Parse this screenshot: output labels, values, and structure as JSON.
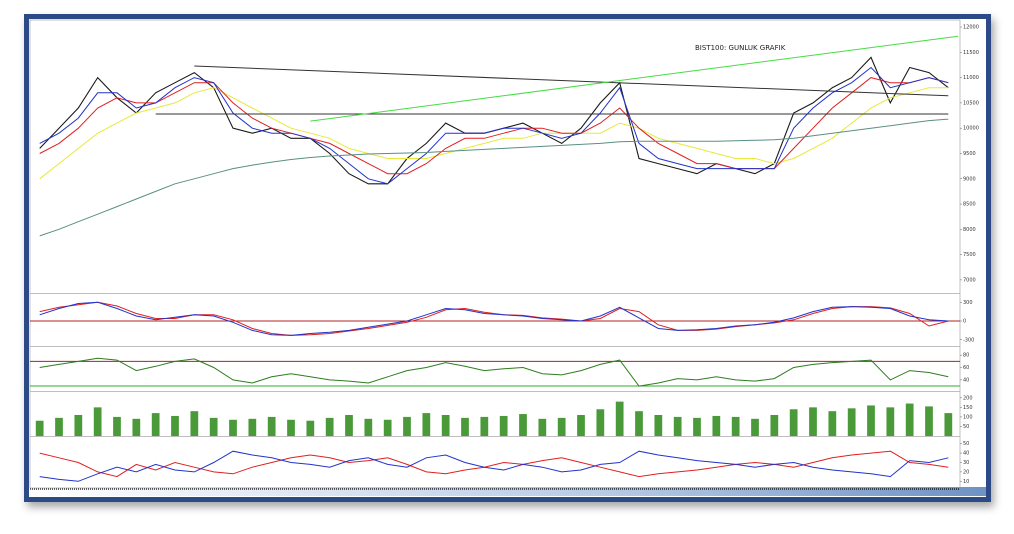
{
  "chart_data": [
    {
      "type": "line",
      "title": "BIST100: GUNLUK GRAFIK",
      "ylim": [
        6800,
        12100
      ],
      "yticks": [
        12000,
        11500,
        11000,
        10500,
        10000,
        9500,
        9000,
        8500,
        8000,
        7500,
        7000
      ],
      "series": [
        {
          "color": "#1a1a1a",
          "values": [
            9600,
            10000,
            10400,
            11000,
            10600,
            10300,
            10700,
            10900,
            11100,
            10800,
            10000,
            9900,
            10000,
            9800,
            9800,
            9500,
            9100,
            8900,
            8900,
            9400,
            9700,
            10100,
            9900,
            9900,
            10000,
            10100,
            9900,
            9700,
            10000,
            10500,
            10900,
            9400,
            9300,
            9200,
            9100,
            9300,
            9200,
            9100,
            9300,
            10300,
            10500,
            10800,
            11000,
            11400,
            10500,
            11200,
            11100,
            10800
          ]
        },
        {
          "color": "#e8e83a",
          "values": [
            9000,
            9300,
            9600,
            9900,
            10100,
            10300,
            10400,
            10500,
            10700,
            10800,
            10600,
            10400,
            10200,
            10000,
            9900,
            9800,
            9600,
            9500,
            9400,
            9400,
            9400,
            9500,
            9600,
            9700,
            9800,
            9800,
            9900,
            9900,
            9900,
            9900,
            10100,
            10000,
            9800,
            9700,
            9600,
            9500,
            9400,
            9400,
            9300,
            9400,
            9600,
            9800,
            10100,
            10400,
            10600,
            10700,
            10800,
            10800
          ]
        },
        {
          "color": "#e02020",
          "values": [
            9500,
            9700,
            10000,
            10400,
            10600,
            10500,
            10500,
            10700,
            10900,
            10900,
            10500,
            10200,
            10000,
            9900,
            9800,
            9700,
            9500,
            9300,
            9100,
            9100,
            9300,
            9600,
            9800,
            9800,
            9900,
            10000,
            10000,
            9900,
            9900,
            10100,
            10400,
            10000,
            9700,
            9500,
            9300,
            9300,
            9200,
            9200,
            9200,
            9600,
            10000,
            10400,
            10700,
            11000,
            10900,
            10900,
            11000,
            10900
          ]
        },
        {
          "color": "#2233cc",
          "values": [
            9700,
            9900,
            10200,
            10700,
            10700,
            10400,
            10500,
            10800,
            11000,
            10900,
            10300,
            10000,
            9900,
            9900,
            9800,
            9600,
            9300,
            9000,
            8900,
            9200,
            9500,
            9900,
            9900,
            9900,
            10000,
            10000,
            9900,
            9800,
            9900,
            10300,
            10800,
            9700,
            9400,
            9300,
            9200,
            9200,
            9200,
            9200,
            9200,
            10000,
            10400,
            10700,
            10900,
            11200,
            10800,
            10900,
            11000,
            10900
          ]
        },
        {
          "color": "#5a8f85",
          "values": [
            7870,
            8000,
            8150,
            8300,
            8450,
            8600,
            8750,
            8900,
            9000,
            9100,
            9200,
            9270,
            9330,
            9380,
            9420,
            9450,
            9470,
            9490,
            9500,
            9510,
            9520,
            9540,
            9560,
            9580,
            9600,
            9620,
            9640,
            9660,
            9680,
            9700,
            9730,
            9740,
            9740,
            9740,
            9740,
            9740,
            9750,
            9760,
            9770,
            9800,
            9850,
            9900,
            9950,
            10000,
            10050,
            10100,
            10150,
            10180
          ]
        }
      ],
      "trendlines": [
        {
          "color": "#333333",
          "x": [
            8,
            47
          ],
          "values": [
            11230,
            10640
          ]
        },
        {
          "color": "#333333",
          "x": [
            6,
            47
          ],
          "values": [
            10280,
            10280
          ]
        },
        {
          "color": "#44dd44",
          "x": [
            14,
            47.5
          ],
          "values": [
            10140,
            11820
          ]
        }
      ]
    },
    {
      "type": "line",
      "ylim": [
        -400,
        400
      ],
      "yticks": [
        300,
        0,
        -300
      ],
      "reference_lines": [
        {
          "value": 0,
          "color": "#b02020"
        }
      ],
      "series": [
        {
          "color": "#e02020",
          "values": [
            150,
            220,
            260,
            300,
            240,
            120,
            40,
            40,
            100,
            100,
            20,
            -120,
            -200,
            -230,
            -220,
            -200,
            -160,
            -120,
            -70,
            -20,
            60,
            180,
            200,
            140,
            100,
            90,
            50,
            30,
            0,
            40,
            200,
            150,
            -60,
            -150,
            -150,
            -130,
            -90,
            -60,
            -30,
            20,
            120,
            200,
            230,
            230,
            210,
            120,
            -80,
            0
          ]
        },
        {
          "color": "#2233cc",
          "values": [
            100,
            200,
            280,
            300,
            200,
            80,
            20,
            60,
            100,
            80,
            -20,
            -150,
            -220,
            -230,
            -200,
            -180,
            -150,
            -100,
            -50,
            0,
            100,
            200,
            180,
            120,
            100,
            80,
            40,
            20,
            0,
            80,
            220,
            50,
            -120,
            -150,
            -140,
            -120,
            -80,
            -60,
            -20,
            50,
            150,
            220,
            230,
            220,
            200,
            80,
            20,
            0
          ]
        }
      ]
    },
    {
      "type": "line",
      "ylim": [
        22,
        90
      ],
      "yticks": [
        80,
        60,
        40
      ],
      "reference_lines": [
        {
          "value": 70,
          "color": "#b02020"
        },
        {
          "value": 30,
          "color": "#33aa33"
        }
      ],
      "series": [
        {
          "color": "#2e7d1e",
          "values": [
            60,
            65,
            70,
            75,
            72,
            55,
            62,
            70,
            74,
            60,
            40,
            35,
            45,
            50,
            45,
            40,
            38,
            35,
            45,
            55,
            60,
            68,
            62,
            55,
            58,
            60,
            50,
            48,
            55,
            65,
            72,
            30,
            35,
            42,
            40,
            45,
            40,
            38,
            42,
            60,
            65,
            68,
            70,
            72,
            40,
            55,
            52,
            45
          ]
        }
      ]
    },
    {
      "type": "bar",
      "ylim": [
        0,
        220
      ],
      "yticks": [
        200,
        150,
        100,
        50
      ],
      "color": "#4a9a3a",
      "values": [
        80,
        95,
        110,
        150,
        100,
        90,
        120,
        105,
        130,
        95,
        85,
        90,
        100,
        85,
        80,
        95,
        110,
        90,
        85,
        100,
        120,
        110,
        95,
        100,
        105,
        115,
        90,
        95,
        110,
        140,
        180,
        130,
        110,
        100,
        95,
        105,
        100,
        90,
        110,
        140,
        150,
        130,
        145,
        160,
        150,
        170,
        155,
        120
      ]
    },
    {
      "type": "line",
      "ylim": [
        5,
        55
      ],
      "yticks": [
        50,
        40,
        30,
        20,
        10
      ],
      "series": [
        {
          "color": "#e02020",
          "values": [
            40,
            35,
            30,
            20,
            15,
            28,
            22,
            30,
            25,
            20,
            18,
            25,
            30,
            35,
            38,
            35,
            30,
            32,
            35,
            28,
            20,
            18,
            22,
            25,
            30,
            28,
            32,
            35,
            30,
            25,
            20,
            15,
            18,
            20,
            22,
            25,
            28,
            30,
            28,
            25,
            30,
            35,
            38,
            40,
            42,
            30,
            28,
            25
          ]
        },
        {
          "color": "#2233cc",
          "values": [
            15,
            12,
            10,
            18,
            25,
            20,
            28,
            22,
            20,
            30,
            42,
            38,
            35,
            30,
            28,
            25,
            32,
            35,
            28,
            25,
            35,
            38,
            30,
            25,
            22,
            28,
            25,
            20,
            22,
            28,
            30,
            42,
            38,
            35,
            32,
            30,
            28,
            25,
            28,
            30,
            25,
            22,
            20,
            18,
            15,
            32,
            30,
            35
          ]
        }
      ]
    }
  ]
}
